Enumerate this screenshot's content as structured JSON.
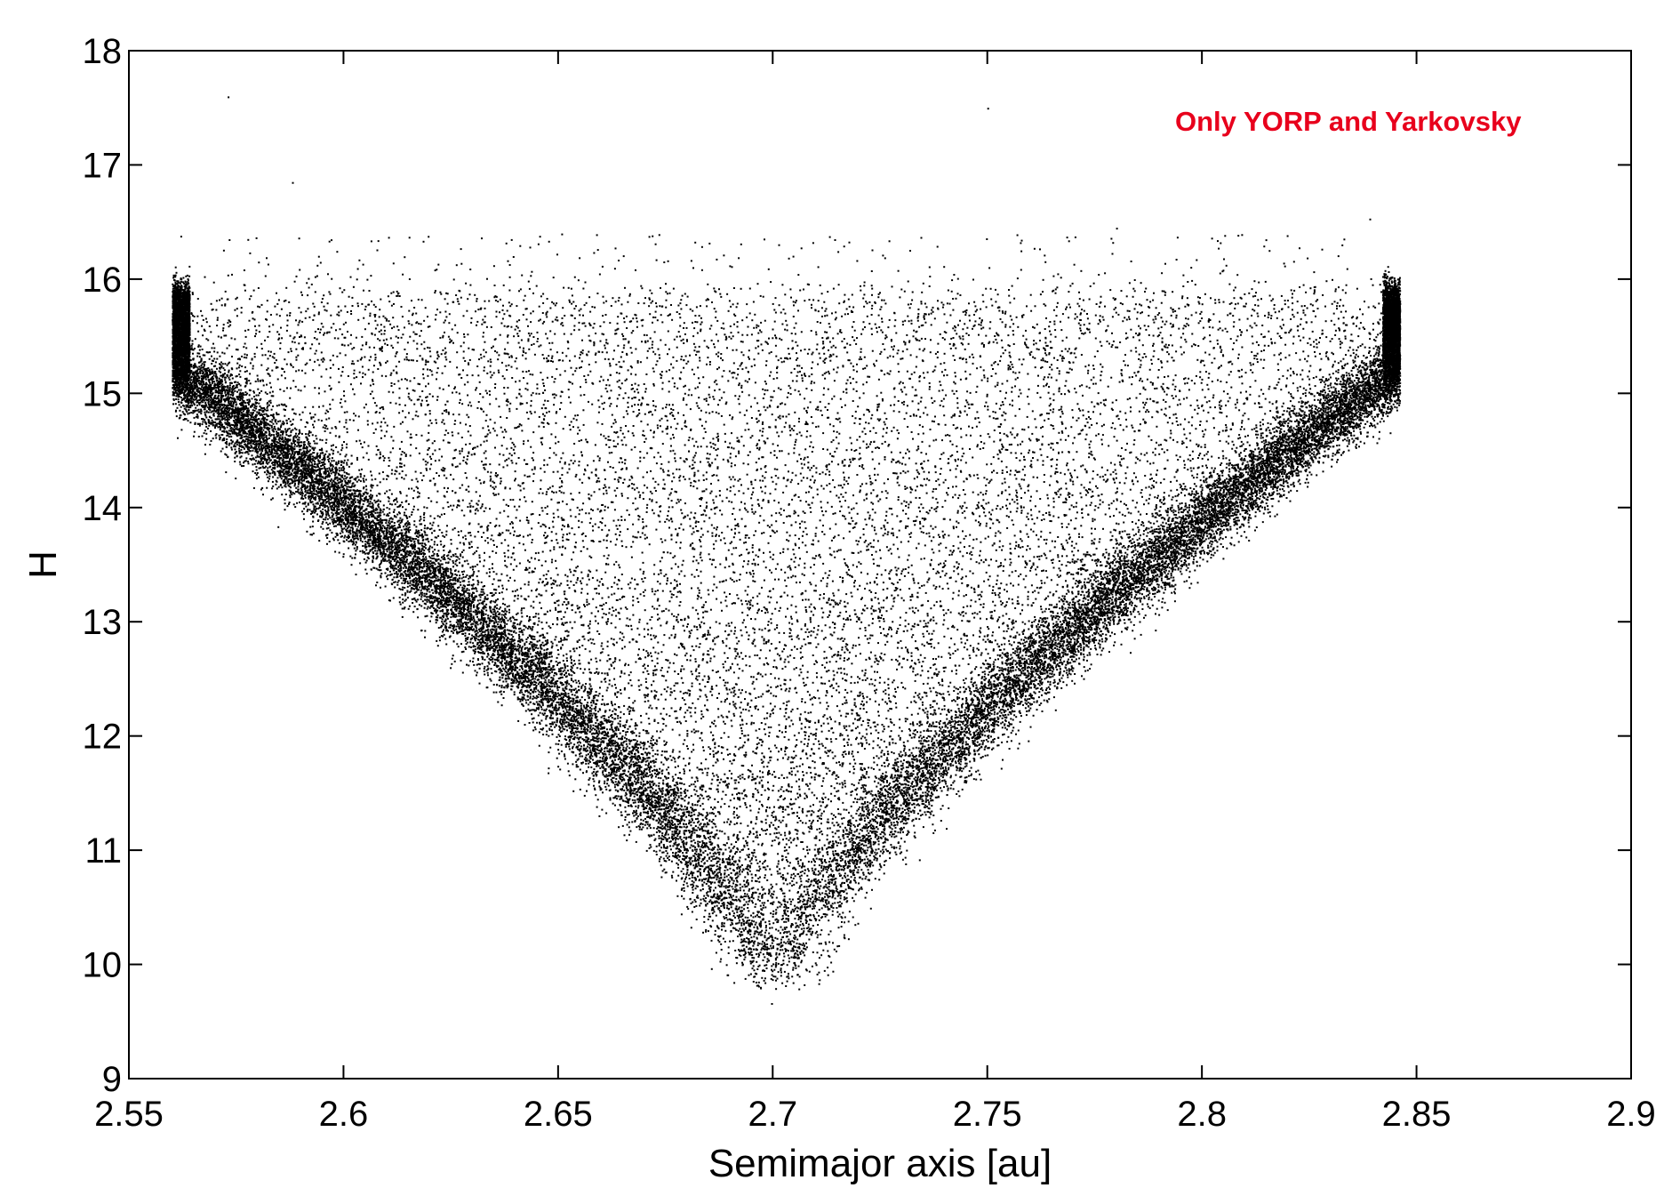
{
  "chart_data": {
    "type": "scatter",
    "title": "",
    "xlabel": "Semimajor axis [au]",
    "ylabel": "H",
    "xlim": [
      2.55,
      2.9
    ],
    "ylim": [
      9,
      18
    ],
    "xticks": [
      "2.55",
      "2.6",
      "2.65",
      "2.7",
      "2.75",
      "2.8",
      "2.85",
      "2.9"
    ],
    "yticks": [
      "9",
      "10",
      "11",
      "12",
      "13",
      "14",
      "15",
      "16",
      "17",
      "18"
    ],
    "grid": false,
    "legend": "none",
    "annotation": "Only YORP and Yarkovsky",
    "annotation_color": "#e8001c",
    "point_color": "#000000",
    "approx_points": 40000,
    "distribution": {
      "description_values": "V-shaped asteroid family: dense edges along H ~ 10 at a ≈ 2.69–2.71 widening to H ~ 15.5 at a ≈ 2.56 and a ≈ 2.845",
      "apex": {
        "a": 2.7,
        "H": 9.8
      },
      "left_edge": {
        "a_min": 2.56,
        "H_at_a_min": 15.2
      },
      "right_edge": {
        "a_max": 2.846,
        "H_at_a_max": 15.3
      }
    },
    "outliers": [
      {
        "x": 2.573,
        "y": 17.6
      },
      {
        "x": 2.588,
        "y": 16.85
      },
      {
        "x": 2.75,
        "y": 17.5
      },
      {
        "x": 2.78,
        "y": 16.45
      },
      {
        "x": 2.839,
        "y": 16.53
      },
      {
        "x": 2.639,
        "y": 16.35
      },
      {
        "x": 2.562,
        "y": 16.38
      }
    ]
  }
}
